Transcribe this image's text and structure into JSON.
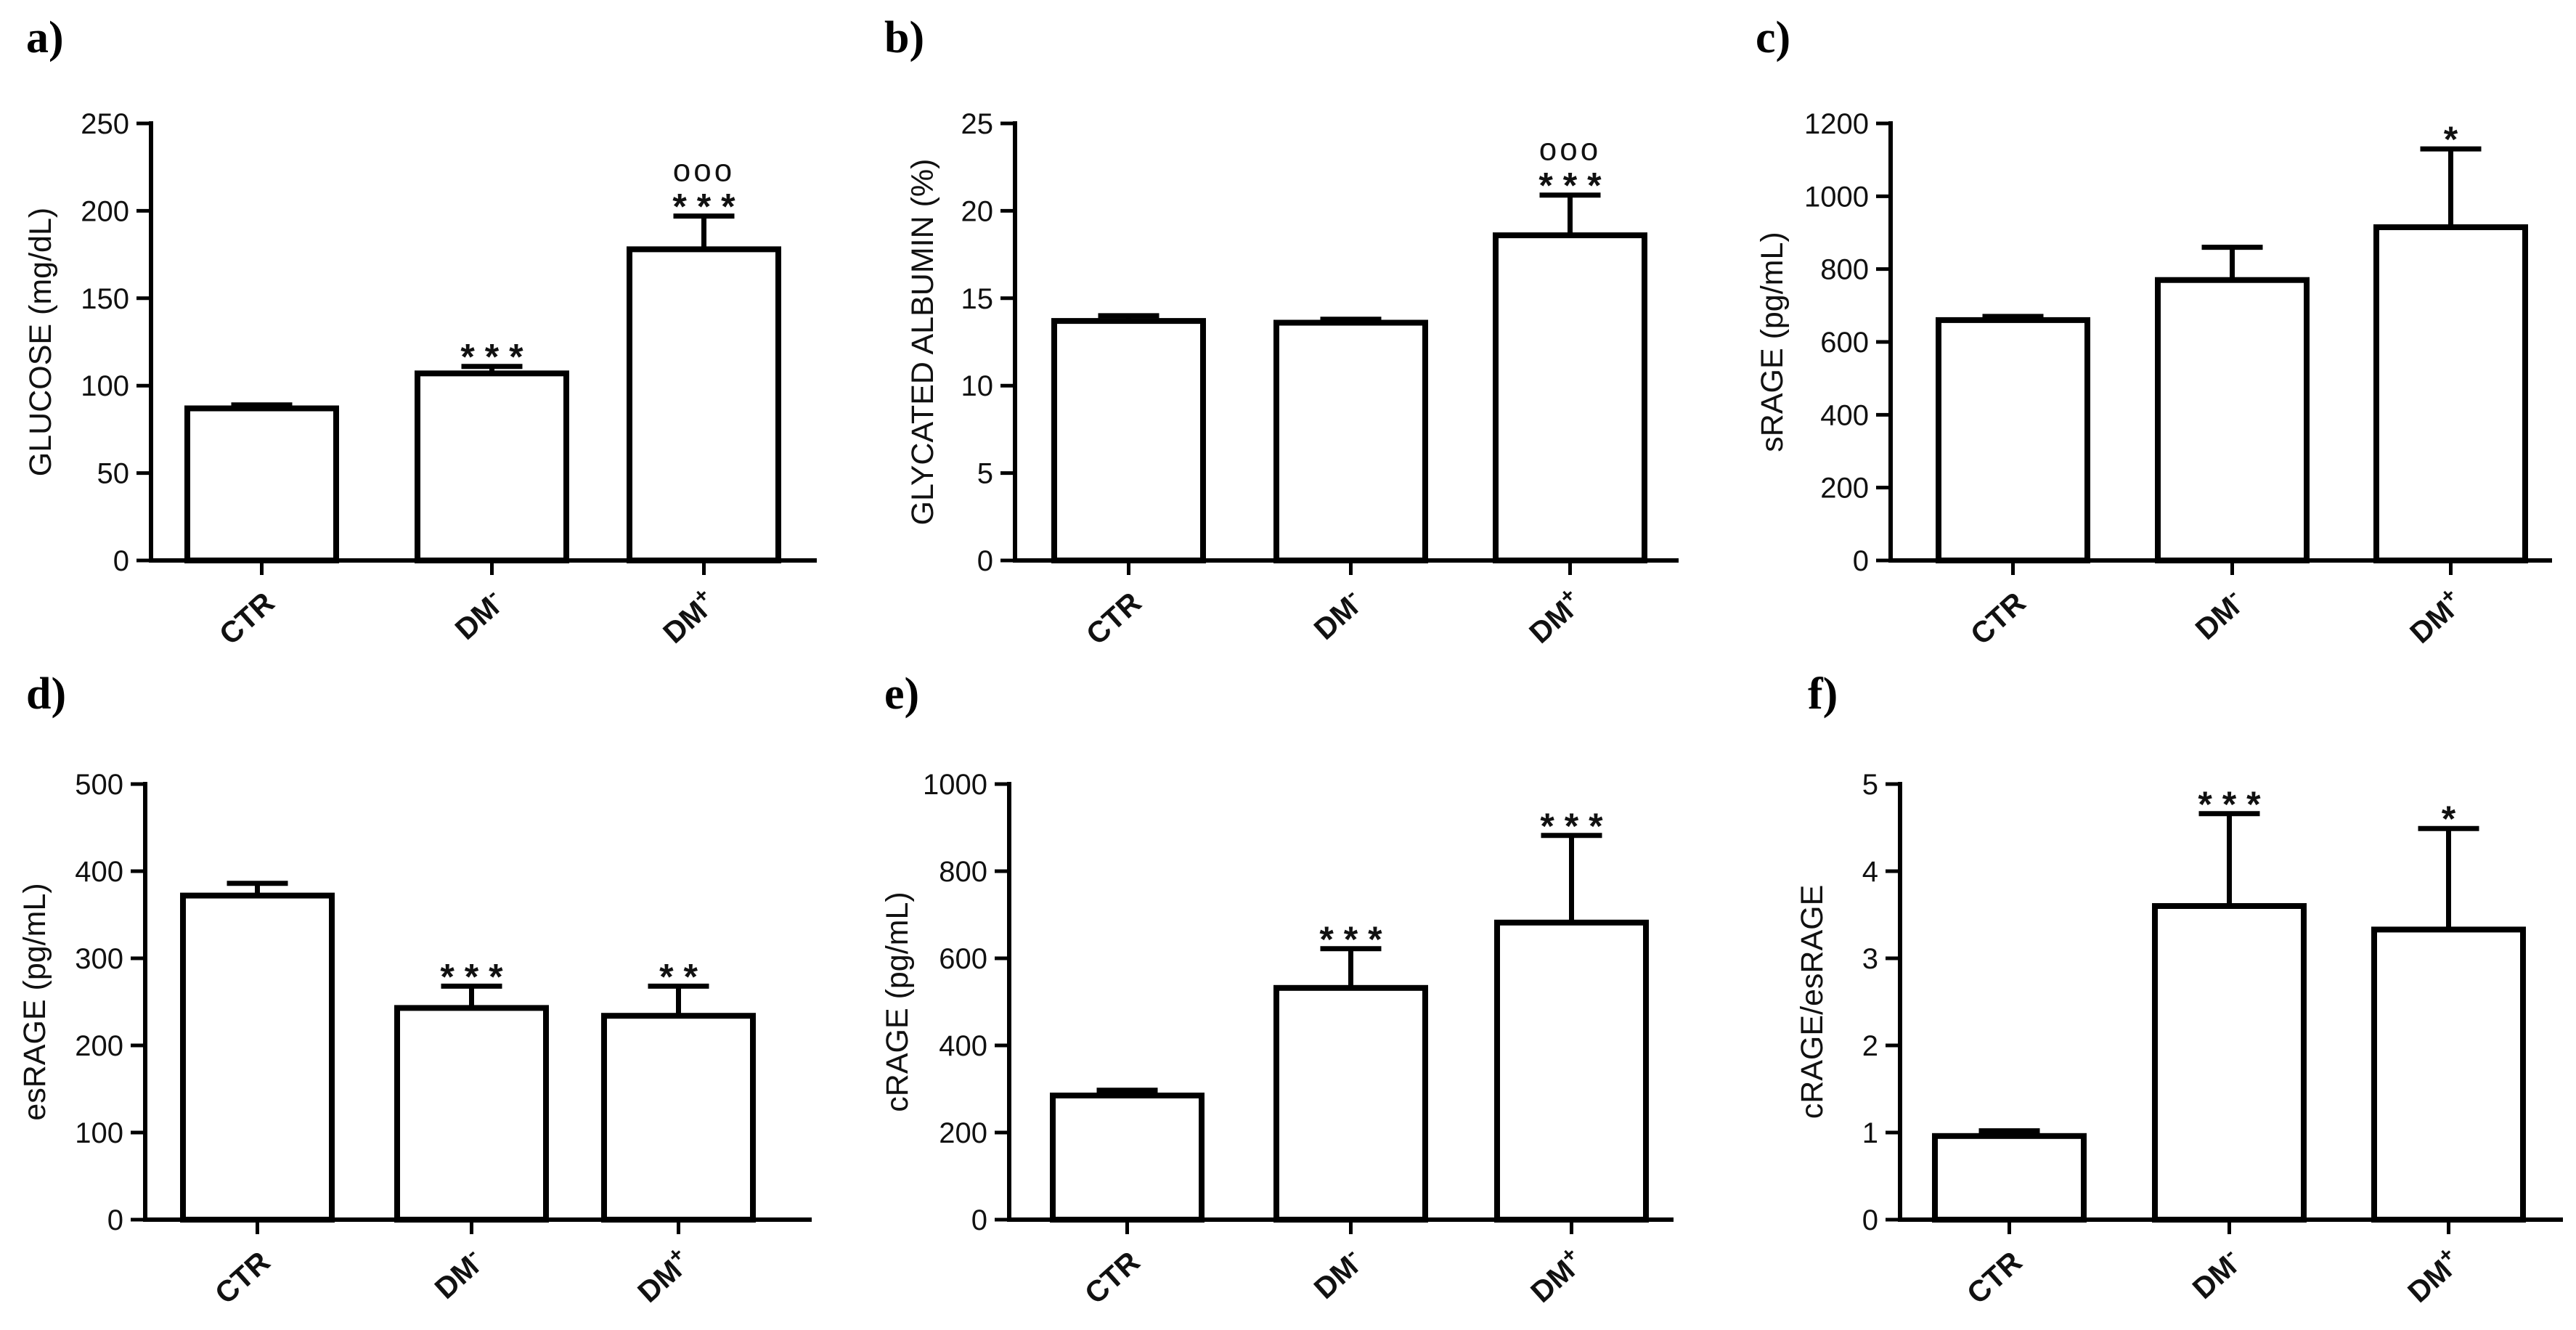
{
  "chart_data": [
    {
      "panel": "a)",
      "type": "bar",
      "categories": [
        "CTR",
        "DM-",
        "DM+"
      ],
      "values": [
        87,
        107,
        178
      ],
      "errors": [
        2,
        4,
        19
      ],
      "significance": [
        "",
        "***",
        "***"
      ],
      "significance2": [
        "",
        "",
        "ooo"
      ],
      "xlabel": "",
      "ylabel": "GLUCOSE (mg/dL)",
      "ylim": [
        0,
        250
      ],
      "yticks": [
        0,
        50,
        100,
        150,
        200,
        250
      ]
    },
    {
      "panel": "b)",
      "type": "bar",
      "categories": [
        "CTR",
        "DM-",
        "DM+"
      ],
      "values": [
        13.7,
        13.6,
        18.6
      ],
      "errors": [
        0.3,
        0.2,
        2.3
      ],
      "significance": [
        "",
        "",
        "***"
      ],
      "significance2": [
        "",
        "",
        "ooo"
      ],
      "xlabel": "",
      "ylabel": "GLYCATED ALBUMIN (%)",
      "ylim": [
        0,
        25
      ],
      "yticks": [
        0,
        5,
        10,
        15,
        20,
        25
      ]
    },
    {
      "panel": "c)",
      "type": "bar",
      "categories": [
        "CTR",
        "DM-",
        "DM+"
      ],
      "values": [
        660,
        770,
        915
      ],
      "errors": [
        10,
        90,
        215
      ],
      "significance": [
        "",
        "",
        "*"
      ],
      "significance2": [
        "",
        "",
        ""
      ],
      "xlabel": "",
      "ylabel": "sRAGE (pg/mL)",
      "ylim": [
        0,
        1200
      ],
      "yticks": [
        0,
        200,
        400,
        600,
        800,
        1000,
        1200
      ]
    },
    {
      "panel": "d)",
      "type": "bar",
      "categories": [
        "CTR",
        "DM-",
        "DM+"
      ],
      "values": [
        372,
        243,
        234
      ],
      "errors": [
        14,
        25,
        34
      ],
      "significance": [
        "",
        "***",
        "**"
      ],
      "significance2": [
        "",
        "",
        ""
      ],
      "xlabel": "",
      "ylabel": "esRAGE (pg/mL)",
      "ylim": [
        0,
        500
      ],
      "yticks": [
        0,
        100,
        200,
        300,
        400,
        500
      ]
    },
    {
      "panel": "e)",
      "type": "bar",
      "categories": [
        "CTR",
        "DM-",
        "DM+"
      ],
      "values": [
        285,
        532,
        682
      ],
      "errors": [
        12,
        90,
        200
      ],
      "significance": [
        "",
        "***",
        "***"
      ],
      "significance2": [
        "",
        "",
        ""
      ],
      "xlabel": "",
      "ylabel": "cRAGE (pg/mL)",
      "ylim": [
        0,
        1000
      ],
      "yticks": [
        0,
        200,
        400,
        600,
        800,
        1000
      ]
    },
    {
      "panel": "f)",
      "type": "bar",
      "categories": [
        "CTR",
        "DM-",
        "DM+"
      ],
      "values": [
        0.96,
        3.6,
        3.33
      ],
      "errors": [
        0.06,
        1.06,
        1.16
      ],
      "significance": [
        "",
        "***",
        "*"
      ],
      "significance2": [
        "",
        "",
        ""
      ],
      "xlabel": "",
      "ylabel": "cRAGE/esRAGE",
      "ylim": [
        0,
        5
      ],
      "yticks": [
        0,
        1,
        2,
        3,
        4,
        5
      ]
    }
  ]
}
